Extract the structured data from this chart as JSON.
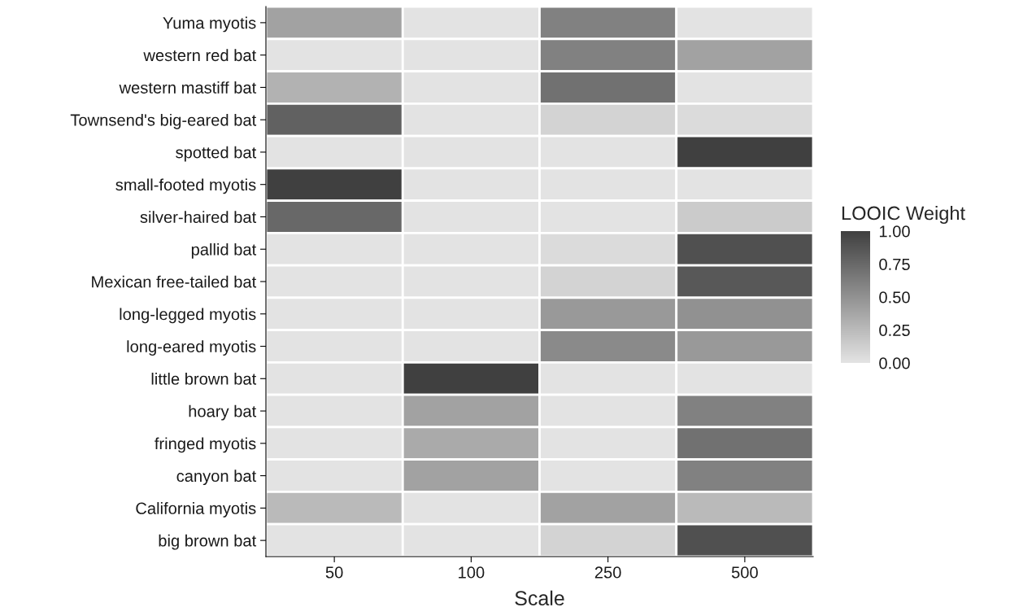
{
  "chart_data": {
    "type": "heatmap",
    "xlabel": "Scale",
    "clabel": "LOOIC Weight",
    "categories": [
      "50",
      "100",
      "250",
      "500"
    ],
    "y_categories": [
      "Yuma myotis",
      "western red bat",
      "western mastiff bat",
      "Townsend's big-eared bat",
      "spotted bat",
      "small-footed myotis",
      "silver-haired bat",
      "pallid bat",
      "Mexican free-tailed bat",
      "long-legged myotis",
      "long-eared myotis",
      "little brown bat",
      "hoary bat",
      "fringed myotis",
      "canyon bat",
      "California myotis",
      "big brown bat"
    ],
    "cells": [
      [
        0.4,
        0,
        0.6,
        0
      ],
      [
        0,
        0,
        0.6,
        0.4
      ],
      [
        0.3,
        0,
        0.7,
        0
      ],
      [
        0.8,
        0,
        0.1,
        0.05
      ],
      [
        0,
        0,
        0,
        1.0
      ],
      [
        1.0,
        0,
        0,
        0
      ],
      [
        0.75,
        0,
        0,
        0.15
      ],
      [
        0,
        0,
        0.05,
        0.9
      ],
      [
        0,
        0,
        0.1,
        0.85
      ],
      [
        0,
        0,
        0.45,
        0.5
      ],
      [
        0,
        0,
        0.55,
        0.45
      ],
      [
        0,
        1.0,
        0,
        0
      ],
      [
        0,
        0.4,
        0,
        0.6
      ],
      [
        0,
        0.35,
        0,
        0.7
      ],
      [
        0,
        0.4,
        0,
        0.6
      ],
      [
        0.25,
        0,
        0.4,
        0.25
      ],
      [
        0,
        0,
        0.1,
        0.9
      ]
    ],
    "clim": [
      0,
      1
    ],
    "cticks": [
      {
        "value": 0,
        "label": "0.00"
      },
      {
        "value": 0.25,
        "label": "0.25"
      },
      {
        "value": 0.5,
        "label": "0.50"
      },
      {
        "value": 0.75,
        "label": "0.75"
      },
      {
        "value": 1,
        "label": "1.00"
      }
    ]
  }
}
